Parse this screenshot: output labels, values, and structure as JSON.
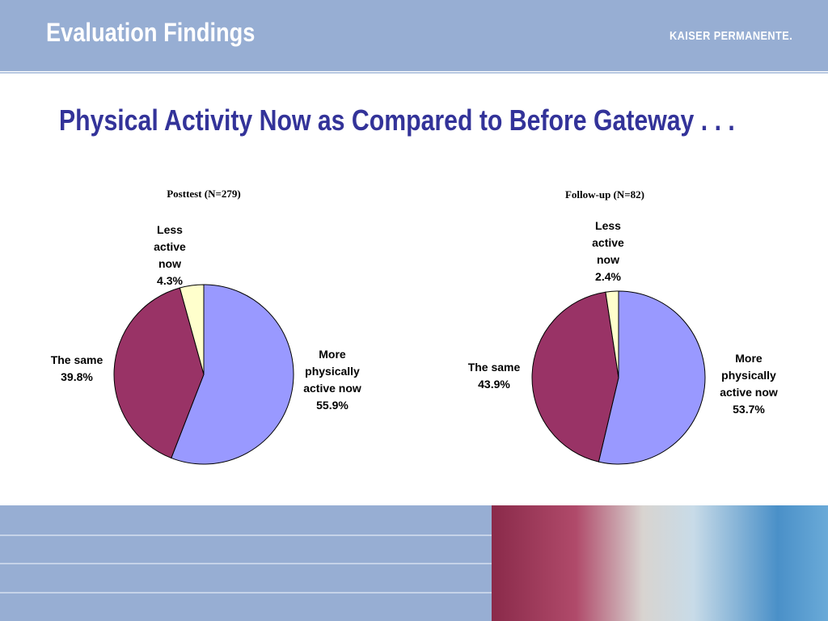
{
  "header": {
    "title": "Evaluation Findings",
    "logo": "KAISER PERMANENTE."
  },
  "slide_title": "Physical Activity Now as Compared to Before Gateway . . .",
  "chart_data": [
    {
      "type": "pie",
      "title": "Posttest (N=279)",
      "categories": [
        "More physically active now",
        "The same",
        "Less active now"
      ],
      "values": [
        55.9,
        39.8,
        4.3
      ],
      "value_labels": [
        "55.9%",
        "39.8%",
        "4.3%"
      ],
      "colors": [
        "#9999ff",
        "#993366",
        "#ffffcc"
      ]
    },
    {
      "type": "pie",
      "title": "Follow-up (N=82)",
      "categories": [
        "More physically active now",
        "The same",
        "Less active now"
      ],
      "values": [
        53.7,
        43.9,
        2.4
      ],
      "value_labels": [
        "53.7%",
        "43.9%",
        "2.4%"
      ],
      "colors": [
        "#9999ff",
        "#993366",
        "#ffffcc"
      ]
    }
  ]
}
